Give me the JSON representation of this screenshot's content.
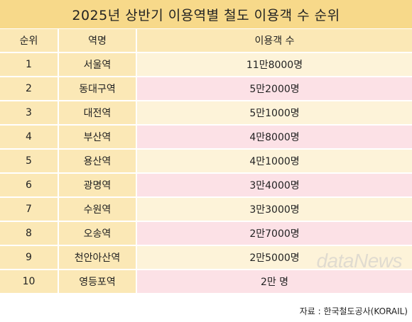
{
  "title": "2025년 상반기 이용역별 철도 이용객 수 순위",
  "headers": {
    "rank": "순위",
    "station": "역명",
    "passengers": "이용객 수"
  },
  "rows": [
    {
      "rank": "1",
      "station": "서울역",
      "passengers": "11만8000명"
    },
    {
      "rank": "2",
      "station": "동대구역",
      "passengers": "5만2000명"
    },
    {
      "rank": "3",
      "station": "대전역",
      "passengers": "5만1000명"
    },
    {
      "rank": "4",
      "station": "부산역",
      "passengers": "4만8000명"
    },
    {
      "rank": "5",
      "station": "용산역",
      "passengers": "4만1000명"
    },
    {
      "rank": "6",
      "station": "광명역",
      "passengers": "3만4000명"
    },
    {
      "rank": "7",
      "station": "수원역",
      "passengers": "3만3000명"
    },
    {
      "rank": "8",
      "station": "오송역",
      "passengers": "2만7000명"
    },
    {
      "rank": "9",
      "station": "천안아산역",
      "passengers": "2만5000명"
    },
    {
      "rank": "10",
      "station": "영등포역",
      "passengers": "2만 명"
    }
  ],
  "source": "자료 : 한국철도공사(KORAIL)",
  "watermark": "dataNews"
}
